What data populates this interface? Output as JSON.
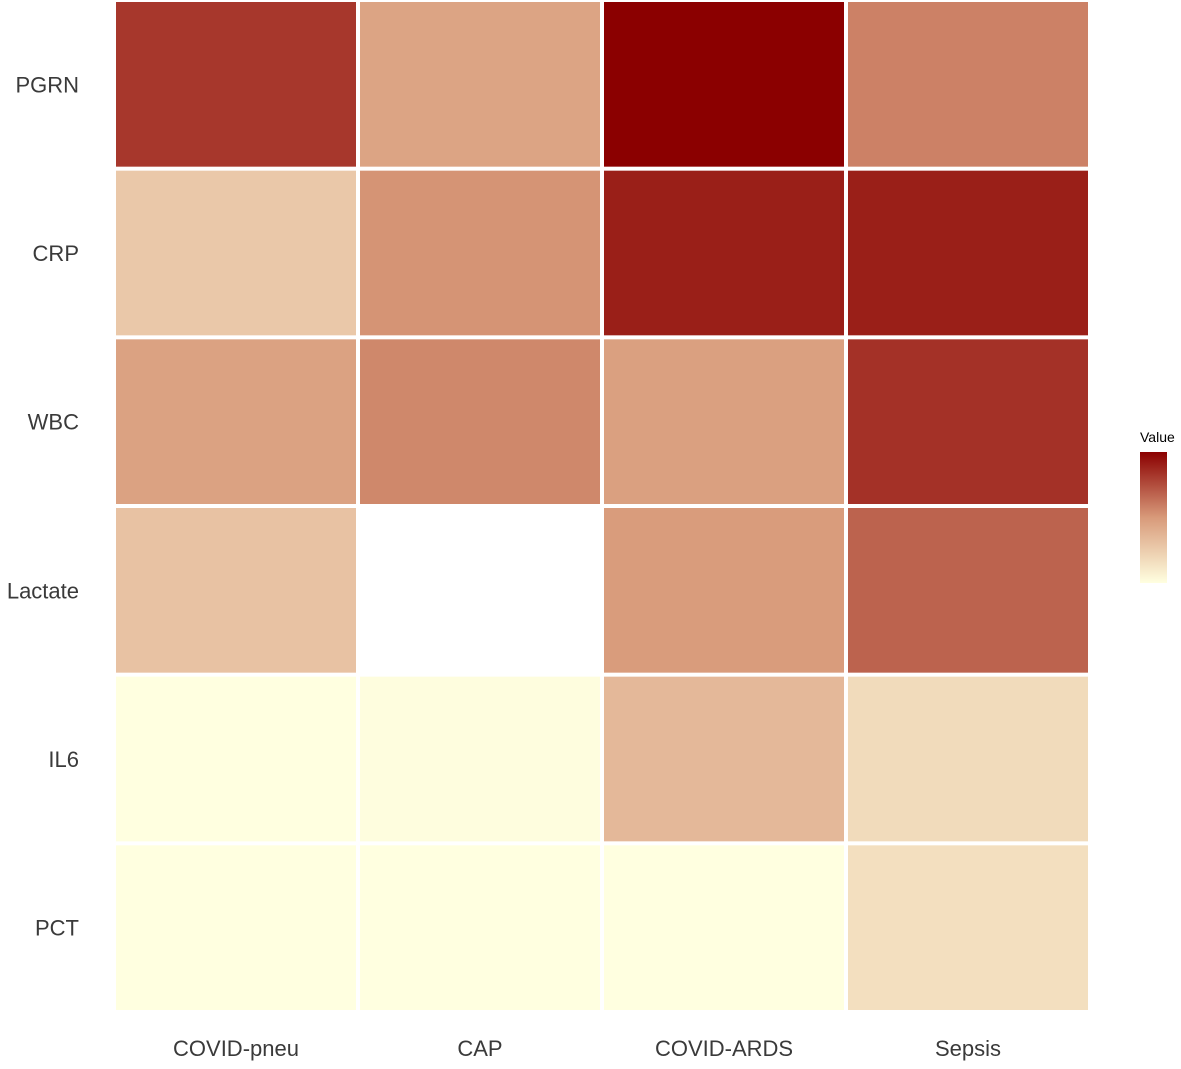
{
  "chart_data": {
    "type": "heatmap",
    "title": "",
    "xlabel": "",
    "ylabel": "",
    "x_categories": [
      "COVID-pneu",
      "CAP",
      "COVID-ARDS",
      "Sepsis"
    ],
    "y_categories": [
      "PGRN",
      "CRP",
      "WBC",
      "Lactate",
      "IL6",
      "PCT"
    ],
    "values": [
      [
        0.82,
        0.45,
        1.0,
        0.58
      ],
      [
        0.27,
        0.52,
        0.9,
        0.9
      ],
      [
        0.46,
        0.56,
        0.47,
        0.84
      ],
      [
        0.3,
        null,
        0.49,
        0.68
      ],
      [
        0.0,
        0.01,
        0.35,
        0.18
      ],
      [
        0.0,
        0.0,
        0.0,
        0.16
      ]
    ],
    "missing_color": "#ffffff",
    "color_scale": {
      "low": "#ffffe0",
      "mid": "#d89a7a",
      "high": "#8b0000"
    },
    "legend": {
      "title": "Value",
      "position": "right"
    },
    "grid": false
  }
}
